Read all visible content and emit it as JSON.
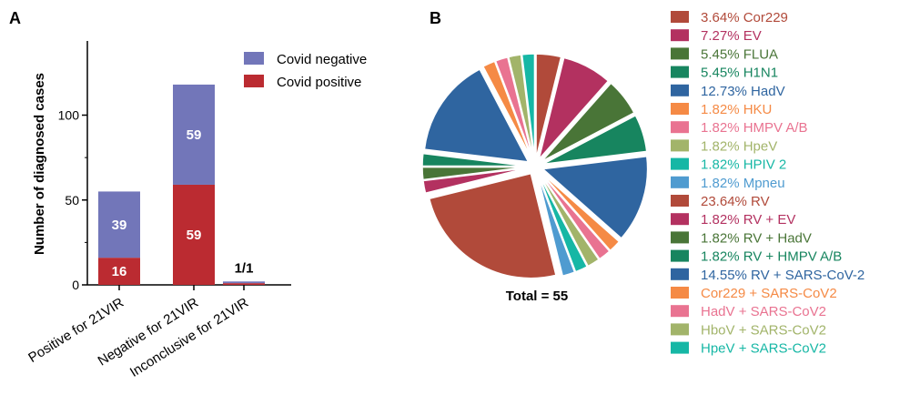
{
  "panels": {
    "a": "A",
    "b": "B"
  },
  "chart_data": [
    {
      "type": "bar",
      "stacked": true,
      "ylabel": "Number of diagnosed cases",
      "ylim": [
        0,
        120
      ],
      "yticks": [
        "0",
        "50",
        "100"
      ],
      "categories": [
        "Positive for 21VIR",
        "Negative for 21VIR",
        "Inconclusive for 21VIR"
      ],
      "series": [
        {
          "name": "Covid positive",
          "color": "#bb2b31",
          "values": [
            16,
            59,
            1
          ],
          "labels": [
            "16",
            "59",
            ""
          ]
        },
        {
          "name": "Covid negative",
          "color": "#7276b9",
          "values": [
            39,
            59,
            1
          ],
          "labels": [
            "39",
            "59",
            ""
          ]
        }
      ],
      "annotations": [
        "1/1"
      ],
      "legend_position": "top-right"
    },
    {
      "type": "pie",
      "total_label": "Total = 55",
      "slices": [
        {
          "pct": "3.64%",
          "name": "Cor229",
          "value": 3.64,
          "color": "#b14a3a"
        },
        {
          "pct": "7.27%",
          "name": "EV",
          "value": 7.27,
          "color": "#b33160"
        },
        {
          "pct": "5.45%",
          "name": "FLUA",
          "value": 5.45,
          "color": "#497537"
        },
        {
          "pct": "5.45%",
          "name": "H1N1",
          "value": 5.45,
          "color": "#17855f"
        },
        {
          "pct": "12.73%",
          "name": "HadV",
          "value": 12.73,
          "color": "#2f65a0"
        },
        {
          "pct": "1.82%",
          "name": "HKU",
          "value": 1.82,
          "color": "#f58a45"
        },
        {
          "pct": "1.82%",
          "name": "HMPV A/B",
          "value": 1.82,
          "color": "#e97391"
        },
        {
          "pct": "1.82%",
          "name": "HpeV",
          "value": 1.82,
          "color": "#a2b46a"
        },
        {
          "pct": "1.82%",
          "name": "HPIV 2",
          "value": 1.82,
          "color": "#16b7a5"
        },
        {
          "pct": "1.82%",
          "name": "Mpneu",
          "value": 1.82,
          "color": "#4f9bd0"
        },
        {
          "pct": "23.64%",
          "name": "RV",
          "value": 23.64,
          "color": "#b14a3a"
        },
        {
          "pct": "1.82%",
          "name": "RV + EV",
          "value": 1.82,
          "color": "#b33160"
        },
        {
          "pct": "1.82%",
          "name": "RV + HadV",
          "value": 1.82,
          "color": "#497537"
        },
        {
          "pct": "1.82%",
          "name": "RV + HMPV A/B",
          "value": 1.82,
          "color": "#17855f"
        },
        {
          "pct": "14.55%",
          "name": "RV + SARS-CoV-2",
          "value": 14.55,
          "color": "#2f65a0"
        },
        {
          "pct": "",
          "name": "Cor229 + SARS-CoV2",
          "value": 1.82,
          "color": "#f58a45"
        },
        {
          "pct": "",
          "name": "HadV + SARS-CoV2",
          "value": 1.82,
          "color": "#e97391"
        },
        {
          "pct": "",
          "name": "HboV + SARS-CoV2",
          "value": 1.82,
          "color": "#a2b46a"
        },
        {
          "pct": "",
          "name": "HpeV + SARS-CoV2",
          "value": 1.82,
          "color": "#16b7a5"
        }
      ]
    }
  ]
}
